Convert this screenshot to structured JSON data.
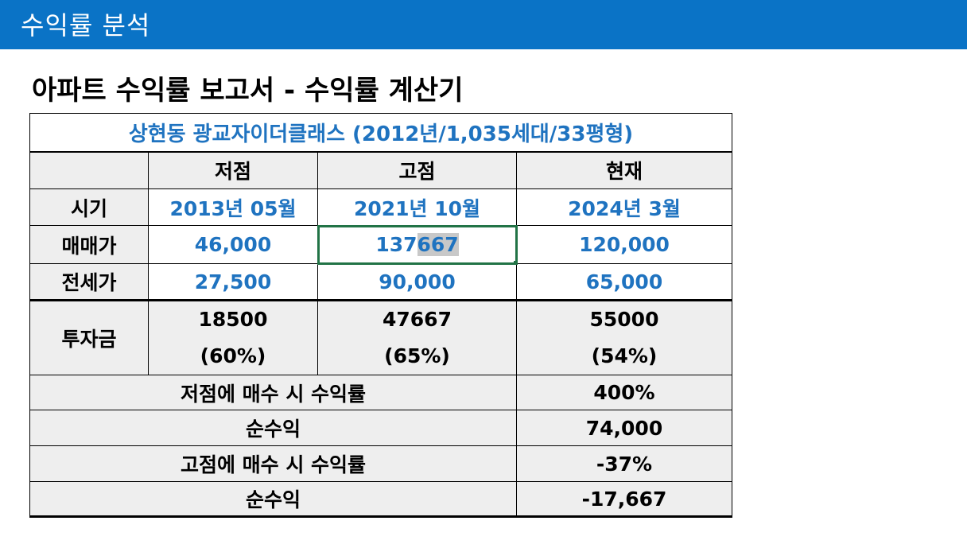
{
  "header": {
    "title": "수익률 분석"
  },
  "heading": "아파트 수익률 보고서 - 수익률 계산기",
  "table": {
    "title": "상현동 광교자이더클래스 (2012년/1,035세대/33평형)",
    "columns": [
      "저점",
      "고점",
      "현재"
    ],
    "rows": {
      "period": {
        "label": "시기",
        "values": [
          "2013년 05월",
          "2021년 10월",
          "2024년 3월"
        ]
      },
      "sale_price": {
        "label": "매매가",
        "values": [
          "46,000",
          "137667",
          "120,000"
        ],
        "selected_prefix": "137",
        "selected_highlight": "667"
      },
      "jeonse_price": {
        "label": "전세가",
        "values": [
          "27,500",
          "90,000",
          "65,000"
        ]
      },
      "investment": {
        "label": "투자금",
        "values": [
          "18500",
          "47667",
          "55000"
        ],
        "ratios": [
          "(60%)",
          "(65%)",
          "(54%)"
        ]
      },
      "low_buy_return": {
        "label": "저점에 매수 시 수익률",
        "value": "400%"
      },
      "low_net_profit": {
        "label": "순수익",
        "value": "74,000"
      },
      "high_buy_return": {
        "label": "고점에 매수 시 수익률",
        "value": "-37%"
      },
      "high_net_profit": {
        "label": "순수익",
        "value": "-17,667"
      }
    }
  },
  "colors": {
    "header_bg": "#0a73c6",
    "value_blue": "#1f73c0",
    "cell_gray": "#eeeeee",
    "selection_green": "#217346"
  }
}
